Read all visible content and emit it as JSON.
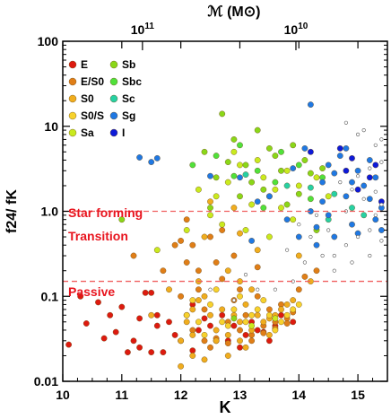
{
  "chart_data": {
    "type": "scatter",
    "xlabel": "K",
    "ylabel": "f24/ fK",
    "top_axis_label": "ℳ (M⊙)",
    "top_axis_ticks": [
      "10^11",
      "10^10"
    ],
    "xlim": [
      10,
      15.5
    ],
    "ylim": [
      0.01,
      100
    ],
    "yscale": "log",
    "x_ticks": [
      "10",
      "11",
      "12",
      "13",
      "14",
      "15"
    ],
    "y_ticks": [
      "0.01",
      "0.1",
      "1.0",
      "10",
      "100"
    ],
    "legend_position": "top-left",
    "thresholds": [
      {
        "y": 1.0,
        "color": "#f06060"
      },
      {
        "y": 0.15,
        "color": "#f06060"
      }
    ],
    "annotations": [
      {
        "label": "Star forming",
        "color": "#e8141e"
      },
      {
        "label": "Transition",
        "color": "#e8141e"
      },
      {
        "label": "Passive",
        "color": "#e8141e"
      }
    ],
    "series": [
      {
        "name": "E",
        "color": "#dd1a0f",
        "points": [
          [
            10.1,
            0.027
          ],
          [
            10.4,
            0.048
          ],
          [
            10.6,
            0.085
          ],
          [
            10.7,
            0.032
          ],
          [
            10.9,
            0.038
          ],
          [
            11.0,
            0.075
          ],
          [
            11.1,
            0.022
          ],
          [
            11.2,
            0.03
          ],
          [
            11.3,
            0.025
          ],
          [
            11.4,
            0.11
          ],
          [
            11.5,
            0.022
          ],
          [
            11.5,
            0.11
          ],
          [
            11.6,
            0.06
          ],
          [
            11.7,
            0.022
          ],
          [
            11.8,
            0.05
          ],
          [
            11.9,
            0.035
          ],
          [
            12.0,
            0.03
          ],
          [
            12.1,
            0.06
          ],
          [
            12.2,
            0.023
          ],
          [
            12.3,
            0.04
          ],
          [
            12.4,
            0.055
          ],
          [
            12.6,
            0.03
          ],
          [
            12.7,
            0.06
          ],
          [
            12.8,
            0.03
          ],
          [
            12.9,
            0.045
          ],
          [
            13.0,
            0.025
          ],
          [
            13.1,
            0.035
          ],
          [
            13.2,
            0.05
          ],
          [
            13.3,
            0.04
          ],
          [
            13.5,
            0.03
          ],
          [
            13.6,
            0.045
          ],
          [
            13.7,
            0.06
          ],
          [
            13.9,
            0.05
          ],
          [
            10.3,
            0.1
          ],
          [
            11.3,
            0.055
          ],
          [
            12.5,
            0.045
          ],
          [
            13.4,
            0.038
          ],
          [
            11.6,
            0.045
          ],
          [
            12.2,
            0.08
          ],
          [
            10.8,
            0.06
          ]
        ]
      },
      {
        "name": "E/S0",
        "color": "#e07e17",
        "points": [
          [
            11.2,
            0.3
          ],
          [
            11.9,
            0.4
          ],
          [
            12.0,
            0.45
          ],
          [
            12.1,
            0.25
          ],
          [
            12.2,
            0.4
          ],
          [
            12.3,
            0.2
          ],
          [
            12.3,
            0.12
          ],
          [
            12.4,
            0.07
          ],
          [
            12.5,
            0.5
          ],
          [
            12.6,
            0.25
          ],
          [
            12.7,
            0.16
          ],
          [
            12.8,
            0.05
          ],
          [
            12.9,
            0.09
          ],
          [
            13.0,
            0.12
          ],
          [
            13.1,
            0.06
          ],
          [
            13.2,
            0.035
          ],
          [
            13.3,
            0.1
          ],
          [
            13.4,
            0.045
          ],
          [
            13.5,
            0.07
          ],
          [
            13.6,
            0.05
          ],
          [
            13.7,
            0.08
          ],
          [
            13.8,
            0.055
          ],
          [
            13.9,
            0.065
          ],
          [
            14.1,
            0.17
          ],
          [
            14.3,
            0.2
          ],
          [
            12.0,
            0.1
          ],
          [
            12.2,
            0.04
          ],
          [
            12.4,
            0.03
          ],
          [
            12.5,
            0.025
          ],
          [
            12.6,
            0.032
          ],
          [
            12.8,
            0.028
          ],
          [
            13.0,
            0.04
          ],
          [
            13.2,
            0.03
          ],
          [
            13.4,
            0.037
          ],
          [
            13.6,
            0.042
          ],
          [
            13.8,
            0.048
          ],
          [
            11.7,
            0.2
          ],
          [
            12.9,
            0.3
          ],
          [
            13.3,
            0.22
          ],
          [
            12.7,
            0.6
          ],
          [
            14.0,
            0.12
          ],
          [
            12.1,
            0.8
          ]
        ]
      },
      {
        "name": "S0",
        "color": "#f0ad1e",
        "points": [
          [
            12.0,
            0.03
          ],
          [
            12.1,
            0.05
          ],
          [
            12.2,
            0.07
          ],
          [
            12.3,
            0.09
          ],
          [
            12.4,
            0.1
          ],
          [
            12.5,
            0.06
          ],
          [
            12.6,
            0.04
          ],
          [
            12.7,
            0.07
          ],
          [
            12.8,
            0.035
          ],
          [
            12.9,
            0.06
          ],
          [
            13.0,
            0.05
          ],
          [
            13.1,
            0.08
          ],
          [
            13.2,
            0.04
          ],
          [
            13.3,
            0.06
          ],
          [
            13.4,
            0.05
          ],
          [
            13.5,
            0.055
          ],
          [
            13.6,
            0.06
          ],
          [
            13.7,
            0.07
          ],
          [
            13.8,
            0.08
          ],
          [
            13.9,
            0.09
          ],
          [
            12.5,
            1.3
          ],
          [
            13.0,
            0.15
          ],
          [
            13.2,
            0.12
          ],
          [
            14.2,
            0.15
          ],
          [
            12.8,
            0.2
          ],
          [
            12.3,
            0.15
          ],
          [
            12.0,
            0.015
          ],
          [
            12.2,
            0.02
          ],
          [
            12.4,
            0.018
          ],
          [
            12.6,
            0.03
          ],
          [
            12.8,
            0.02
          ],
          [
            13.0,
            0.03
          ],
          [
            11.5,
            0.06
          ],
          [
            11.8,
            0.12
          ],
          [
            12.4,
            0.5
          ],
          [
            13.3,
            0.35
          ],
          [
            13.0,
            0.55
          ],
          [
            14.0,
            0.3
          ],
          [
            12.9,
            1.1
          ],
          [
            12.2,
            0.035
          ],
          [
            13.1,
            0.025
          ],
          [
            13.5,
            0.035
          ]
        ]
      },
      {
        "name": "S0/S",
        "color": "#f7d22c",
        "points": [
          [
            12.1,
            0.06
          ],
          [
            12.3,
            0.05
          ],
          [
            12.5,
            0.08
          ],
          [
            12.7,
            0.05
          ],
          [
            12.9,
            0.07
          ],
          [
            13.1,
            0.05
          ],
          [
            13.3,
            0.07
          ],
          [
            13.5,
            0.06
          ],
          [
            13.7,
            0.05
          ],
          [
            13.9,
            0.07
          ],
          [
            12.6,
            0.12
          ],
          [
            13.0,
            0.1
          ],
          [
            13.4,
            0.09
          ],
          [
            12.8,
            0.045
          ],
          [
            13.2,
            0.06
          ],
          [
            13.6,
            0.04
          ],
          [
            12.4,
            0.035
          ],
          [
            14.0,
            0.08
          ],
          [
            13.8,
            0.06
          ],
          [
            12.2,
            0.09
          ]
        ]
      },
      {
        "name": "Sa",
        "color": "#c9ea1e",
        "points": [
          [
            12.3,
            1.8
          ],
          [
            12.6,
            1.5
          ],
          [
            12.8,
            2.2
          ],
          [
            13.0,
            3.5
          ],
          [
            13.2,
            1.2
          ],
          [
            13.4,
            2.5
          ],
          [
            13.6,
            1.8
          ],
          [
            13.8,
            3.0
          ],
          [
            14.0,
            2.0
          ],
          [
            12.7,
            0.7
          ],
          [
            13.1,
            0.6
          ],
          [
            13.5,
            0.5
          ],
          [
            13.9,
            0.8
          ],
          [
            12.9,
            5.0
          ],
          [
            13.3,
            4.0
          ],
          [
            12.5,
            0.9
          ],
          [
            13.7,
            1.1
          ],
          [
            14.3,
            2.5
          ],
          [
            11.6,
            0.35
          ],
          [
            12.1,
            0.6
          ],
          [
            14.5,
            1.5
          ],
          [
            13.2,
            0.045
          ],
          [
            13.6,
            0.055
          ]
        ]
      },
      {
        "name": "Sb",
        "color": "#8ad718",
        "points": [
          [
            11.0,
            0.8
          ],
          [
            12.4,
            5.0
          ],
          [
            12.7,
            14.0
          ],
          [
            12.9,
            7.0
          ],
          [
            13.1,
            3.5
          ],
          [
            13.3,
            9.0
          ],
          [
            13.5,
            5.5
          ],
          [
            13.7,
            3.0
          ],
          [
            13.9,
            6.0
          ],
          [
            14.1,
            4.0
          ],
          [
            12.6,
            2.5
          ],
          [
            12.8,
            3.8
          ],
          [
            13.2,
            2.2
          ],
          [
            13.4,
            1.8
          ],
          [
            13.6,
            4.5
          ],
          [
            14.2,
            2.8
          ],
          [
            14.4,
            3.2
          ],
          [
            12.5,
            1.1
          ],
          [
            13.0,
            1.5
          ],
          [
            13.8,
            1.2
          ],
          [
            14.0,
            1.6
          ],
          [
            14.3,
            0.6
          ],
          [
            12.9,
            0.055
          ]
        ]
      },
      {
        "name": "Sbc",
        "color": "#50e13a",
        "points": [
          [
            12.2,
            3.5
          ],
          [
            12.6,
            4.5
          ],
          [
            13.0,
            6.0
          ],
          [
            13.3,
            3.0
          ],
          [
            13.6,
            2.2
          ],
          [
            14.0,
            3.5
          ],
          [
            14.4,
            2.5
          ],
          [
            12.9,
            2.6
          ],
          [
            13.7,
            5.0
          ],
          [
            14.2,
            1.4
          ],
          [
            13.4,
            1.1
          ]
        ]
      },
      {
        "name": "Sc",
        "color": "#27d1a3",
        "points": [
          [
            13.1,
            2.7
          ],
          [
            13.5,
            1.5
          ],
          [
            13.8,
            2.0
          ],
          [
            14.2,
            1.9
          ],
          [
            14.6,
            1.6
          ],
          [
            14.9,
            1.1
          ],
          [
            15.1,
            0.9
          ],
          [
            14.5,
            0.8
          ]
        ]
      },
      {
        "name": "Sg",
        "color": "#1f78e3",
        "points": [
          [
            11.3,
            4.3
          ],
          [
            11.5,
            3.8
          ],
          [
            11.6,
            4.2
          ],
          [
            12.5,
            2.6
          ],
          [
            13.0,
            2.5
          ],
          [
            13.5,
            1.5
          ],
          [
            13.9,
            3.2
          ],
          [
            14.1,
            5.5
          ],
          [
            14.2,
            1.0
          ],
          [
            14.3,
            0.65
          ],
          [
            14.4,
            1.3
          ],
          [
            14.5,
            0.9
          ],
          [
            14.6,
            2.8
          ],
          [
            14.7,
            4.5
          ],
          [
            14.8,
            1.5
          ],
          [
            14.9,
            2.2
          ],
          [
            15.0,
            3.0
          ],
          [
            15.1,
            2.0
          ],
          [
            15.2,
            1.4
          ],
          [
            15.3,
            0.8
          ],
          [
            15.4,
            1.1
          ],
          [
            14.0,
            0.5
          ],
          [
            14.3,
            0.4
          ],
          [
            14.6,
            0.5
          ],
          [
            15.0,
            0.55
          ],
          [
            15.2,
            4.0
          ],
          [
            14.8,
            5.5
          ],
          [
            14.2,
            18.0
          ],
          [
            13.3,
            1.3
          ],
          [
            13.8,
            0.8
          ],
          [
            14.9,
            0.7
          ],
          [
            15.3,
            2.5
          ],
          [
            13.2,
            0.45
          ],
          [
            14.5,
            3.5
          ],
          [
            15.4,
            0.6
          ],
          [
            14.4,
            2.2
          ]
        ]
      },
      {
        "name": "I",
        "color": "#0d1ad8",
        "points": [
          [
            14.2,
            5.0
          ],
          [
            14.7,
            5.5
          ],
          [
            14.9,
            4.2
          ],
          [
            15.0,
            1.8
          ],
          [
            15.2,
            2.5
          ],
          [
            15.3,
            3.5
          ],
          [
            15.4,
            1.3
          ],
          [
            14.8,
            3.0
          ]
        ]
      },
      {
        "name": "",
        "color": "#ffffff",
        "hollow": true,
        "points": [
          [
            13.3,
            0.12
          ],
          [
            13.6,
            0.12
          ],
          [
            13.9,
            0.15
          ],
          [
            14.1,
            0.25
          ],
          [
            14.4,
            0.3
          ],
          [
            14.6,
            0.3
          ],
          [
            14.8,
            0.4
          ],
          [
            15.0,
            0.5
          ],
          [
            15.2,
            0.6
          ],
          [
            15.3,
            0.9
          ],
          [
            15.4,
            1.2
          ],
          [
            15.1,
            1.4
          ],
          [
            14.9,
            1.8
          ],
          [
            14.7,
            2.2
          ],
          [
            15.0,
            2.6
          ],
          [
            15.2,
            3.2
          ],
          [
            15.4,
            3.8
          ],
          [
            15.3,
            6.0
          ],
          [
            15.0,
            8.0
          ],
          [
            14.8,
            11.0
          ],
          [
            15.1,
            9.0
          ],
          [
            15.4,
            7.0
          ],
          [
            14.5,
            0.6
          ],
          [
            14.3,
            0.9
          ],
          [
            14.0,
            0.7
          ],
          [
            13.8,
            0.35
          ],
          [
            14.2,
            0.5
          ],
          [
            15.4,
            0.45
          ],
          [
            15.2,
            0.3
          ],
          [
            14.9,
            0.25
          ],
          [
            14.6,
            0.2
          ],
          [
            12.5,
            0.12
          ],
          [
            12.9,
            0.09
          ],
          [
            13.1,
            0.18
          ],
          [
            15.3,
            1.7
          ],
          [
            14.8,
            1.0
          ]
        ]
      }
    ]
  }
}
